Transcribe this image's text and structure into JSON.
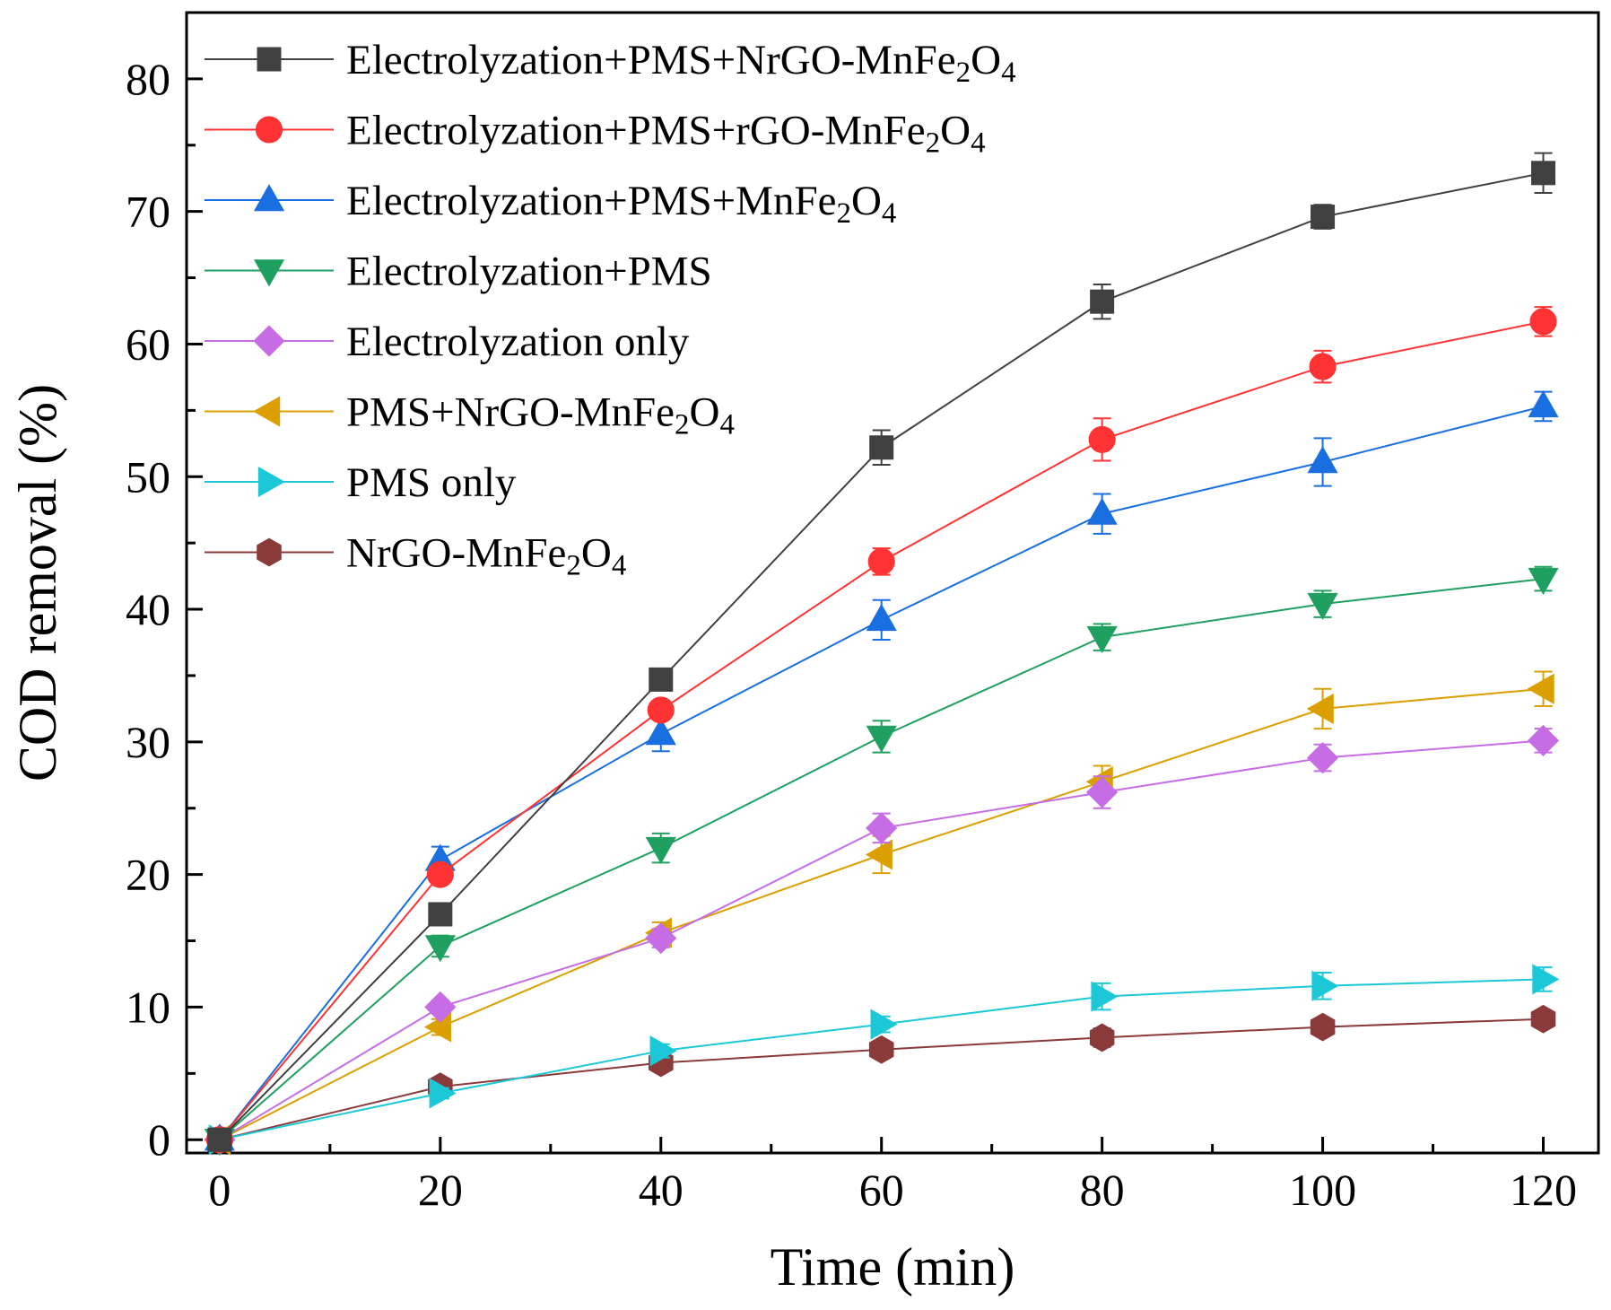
{
  "chart_data": {
    "type": "line",
    "xlabel": "Time (min)",
    "ylabel": "COD removal (%)",
    "xlim": [
      -3,
      125
    ],
    "ylim": [
      -1,
      85
    ],
    "x_ticks": [
      0,
      20,
      40,
      60,
      80,
      100,
      120
    ],
    "y_ticks": [
      0,
      10,
      20,
      30,
      40,
      50,
      60,
      70,
      80
    ],
    "x_tick_labels": [
      "0",
      "20",
      "40",
      "60",
      "80",
      "100",
      "120"
    ],
    "y_tick_labels": [
      "0",
      "10",
      "20",
      "30",
      "40",
      "50",
      "60",
      "70",
      "80"
    ],
    "x_minor_ticks": [
      10,
      30,
      50,
      70,
      90,
      110
    ],
    "y_minor_ticks": [
      5,
      15,
      25,
      35,
      45,
      55,
      65,
      75
    ],
    "legend_position": "top-left",
    "x": [
      0,
      20,
      40,
      60,
      80,
      100,
      120
    ],
    "series": [
      {
        "name": "Electrolyzation+PMS+NrGO-MnFe2O4",
        "label_parts": [
          {
            "text": "Electrolyzation+PMS+NrGO-MnFe"
          },
          {
            "text": "2",
            "sub": true
          },
          {
            "text": "O"
          },
          {
            "text": "4",
            "sub": true
          }
        ],
        "color": "#404040",
        "marker": "square",
        "values": [
          0,
          17.0,
          34.7,
          52.2,
          63.2,
          69.6,
          72.9
        ],
        "errors": [
          0,
          0.6,
          0.8,
          1.3,
          1.3,
          0.9,
          1.5
        ]
      },
      {
        "name": "Electrolyzation+PMS+rGO-MnFe2O4",
        "label_parts": [
          {
            "text": "Electrolyzation+PMS+rGO-MnFe"
          },
          {
            "text": "2",
            "sub": true
          },
          {
            "text": "O"
          },
          {
            "text": "4",
            "sub": true
          }
        ],
        "color": "#ff3333",
        "marker": "circle",
        "values": [
          0,
          20.0,
          32.4,
          43.6,
          52.8,
          58.3,
          61.7
        ],
        "errors": [
          0,
          0.6,
          0.7,
          1.0,
          1.6,
          1.2,
          1.1
        ]
      },
      {
        "name": "Electrolyzation+PMS+MnFe2O4",
        "label_parts": [
          {
            "text": "Electrolyzation+PMS+MnFe"
          },
          {
            "text": "2",
            "sub": true
          },
          {
            "text": "O"
          },
          {
            "text": "4",
            "sub": true
          }
        ],
        "color": "#1a6fe0",
        "marker": "triangle-up",
        "values": [
          0,
          21.1,
          30.6,
          39.2,
          47.2,
          51.1,
          55.3
        ],
        "errors": [
          0,
          1.0,
          1.3,
          1.5,
          1.5,
          1.8,
          1.1
        ]
      },
      {
        "name": "Electrolyzation+PMS",
        "label_parts": [
          {
            "text": "Electrolyzation+PMS"
          }
        ],
        "color": "#20a060",
        "marker": "triangle-down",
        "values": [
          0,
          14.6,
          22.0,
          30.4,
          37.9,
          40.4,
          42.3
        ],
        "errors": [
          0,
          0.8,
          1.1,
          1.2,
          1.0,
          1.0,
          0.9
        ]
      },
      {
        "name": "Electrolyzation only",
        "label_parts": [
          {
            "text": "Electrolyzation only"
          }
        ],
        "color": "#c66de6",
        "marker": "diamond",
        "values": [
          0,
          10.0,
          15.2,
          23.5,
          26.2,
          28.8,
          30.1
        ],
        "errors": [
          0,
          0.5,
          0.7,
          1.1,
          1.2,
          1.0,
          0.9
        ]
      },
      {
        "name": "PMS+NrGO-MnFe2O4",
        "label_parts": [
          {
            "text": "PMS+NrGO-MnFe"
          },
          {
            "text": "2",
            "sub": true
          },
          {
            "text": "O"
          },
          {
            "text": "4",
            "sub": true
          }
        ],
        "color": "#dba000",
        "marker": "triangle-left",
        "values": [
          0,
          8.5,
          15.6,
          21.5,
          27.0,
          32.5,
          34.0
        ],
        "errors": [
          0,
          0.6,
          0.8,
          1.4,
          1.2,
          1.5,
          1.3
        ]
      },
      {
        "name": "PMS only",
        "label_parts": [
          {
            "text": "PMS only"
          }
        ],
        "color": "#1cc8d8",
        "marker": "triangle-right",
        "values": [
          0,
          3.5,
          6.7,
          8.7,
          10.8,
          11.6,
          12.1
        ],
        "errors": [
          0,
          0.4,
          0.5,
          0.6,
          1.0,
          1.0,
          0.9
        ]
      },
      {
        "name": "NrGO-MnFe2O4",
        "label_parts": [
          {
            "text": "NrGO-MnFe"
          },
          {
            "text": "2",
            "sub": true
          },
          {
            "text": "O"
          },
          {
            "text": "4",
            "sub": true
          }
        ],
        "color": "#8b3a3a",
        "marker": "hexagon",
        "values": [
          0,
          4.0,
          5.8,
          6.8,
          7.7,
          8.5,
          9.1
        ],
        "errors": [
          0,
          0.4,
          0.5,
          0.6,
          0.7,
          0.6,
          0.6
        ]
      }
    ]
  }
}
